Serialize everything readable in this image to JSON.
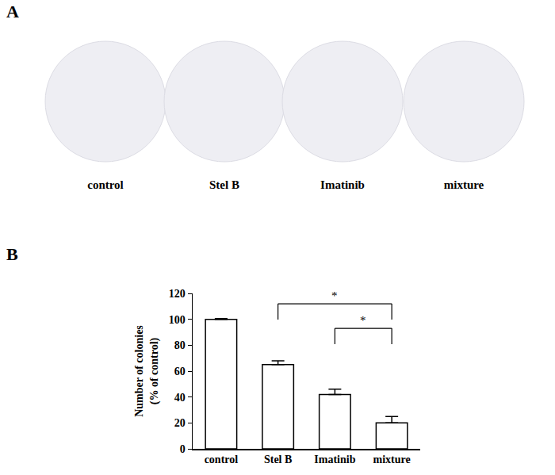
{
  "panel_labels": [
    "A",
    "B"
  ],
  "plates": {
    "labels": [
      "control",
      "Stel B",
      "Imatinib",
      "mixture"
    ]
  },
  "chart_data": {
    "type": "bar",
    "ylabel": "Number of colonies\n(% of control)",
    "categories": [
      "control",
      "Stel B",
      "Imatinib",
      "mixture"
    ],
    "values": [
      100,
      65,
      42,
      20
    ],
    "errors": [
      0.5,
      3,
      4,
      5
    ],
    "color": "#ffffff",
    "ylim": [
      0,
      120
    ],
    "yticks": [
      0,
      20,
      40,
      60,
      80,
      100,
      120
    ],
    "grid": false,
    "significance": [
      {
        "from": "Stel B",
        "to": "mixture",
        "label": "*",
        "y": 112
      },
      {
        "from": "Imatinib",
        "to": "mixture",
        "label": "*",
        "y": 93
      }
    ]
  }
}
